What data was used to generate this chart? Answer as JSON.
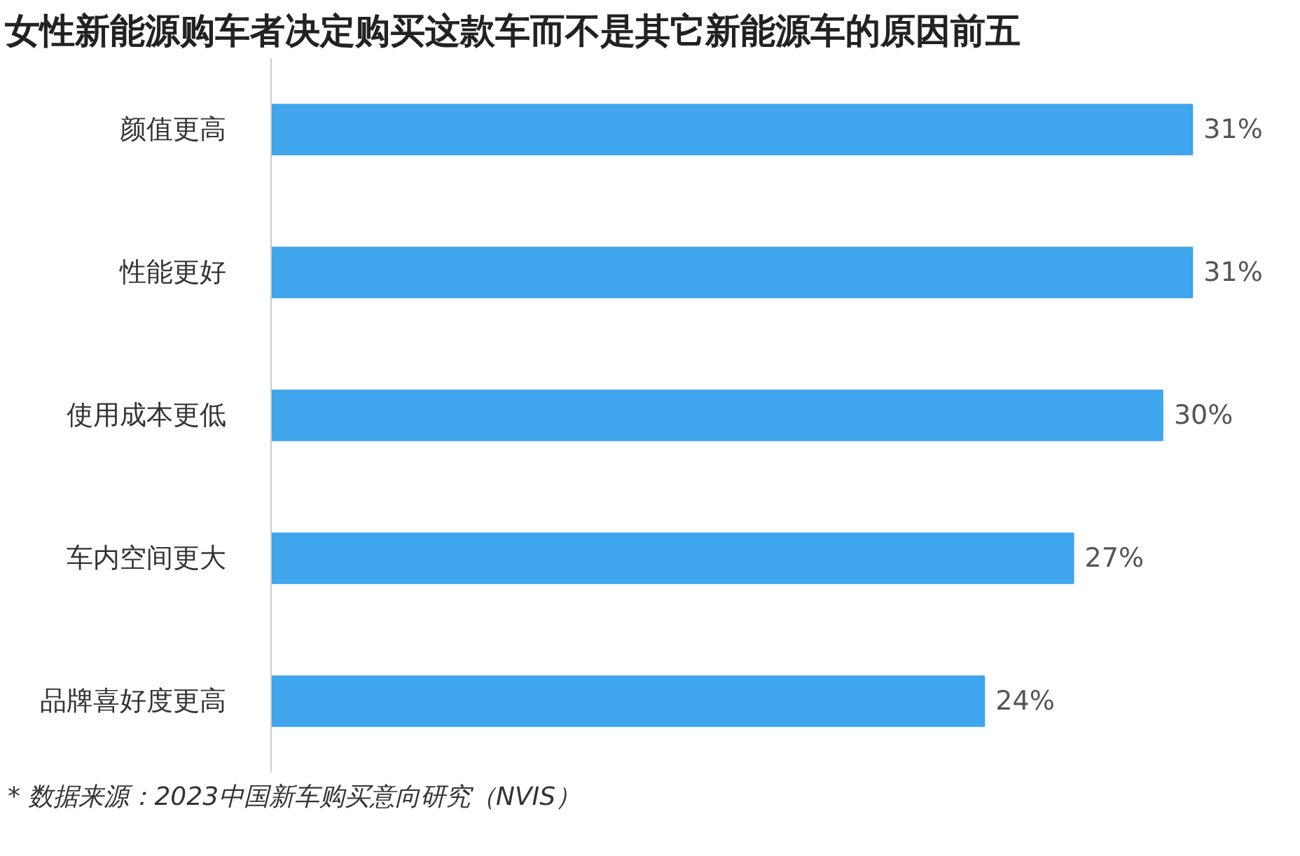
{
  "chart_data": {
    "type": "bar",
    "orientation": "horizontal",
    "title": "女性新能源购车者决定购买这款车而不是其它新能源车的原因前五",
    "categories": [
      "颜值更高",
      "性能更好",
      "使用成本更低",
      "车内空间更大",
      "品牌喜好度更高"
    ],
    "values": [
      31,
      31,
      30,
      27,
      24
    ],
    "value_labels": [
      "31%",
      "31%",
      "30%",
      "27%",
      "24%"
    ],
    "color": "#3fa5ec",
    "annotations": [
      "* 数据来源：2023中国新车购买意向研究（NVIS）"
    ],
    "grid": false
  }
}
